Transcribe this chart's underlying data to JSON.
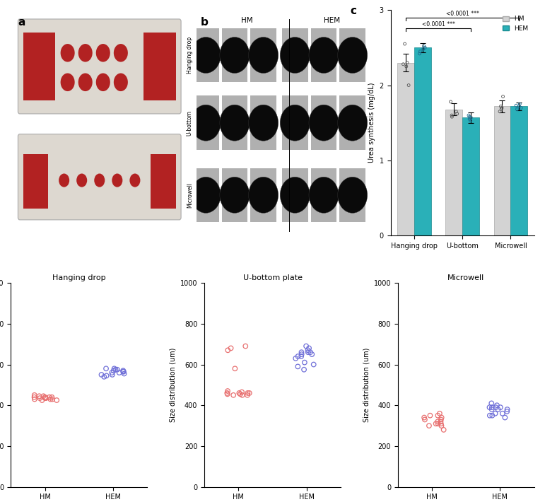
{
  "bar_chart": {
    "groups": [
      "Hanging drop",
      "U-bottom",
      "Microwell"
    ],
    "hm_means": [
      2.3,
      1.68,
      1.72
    ],
    "hem_means": [
      2.5,
      1.57,
      1.72
    ],
    "hm_errors": [
      0.12,
      0.08,
      0.08
    ],
    "hem_errors": [
      0.06,
      0.07,
      0.05
    ],
    "hm_dots": [
      [
        2.55,
        2.0,
        2.3,
        2.25,
        2.28
      ],
      [
        1.78,
        1.62,
        1.65,
        1.58,
        1.6
      ],
      [
        1.85,
        1.65,
        1.72,
        1.68,
        1.7
      ]
    ],
    "hem_dots": [
      [
        2.45,
        2.42,
        2.5,
        2.48,
        2.52
      ],
      [
        1.6,
        1.55,
        1.57,
        1.53,
        1.58
      ],
      [
        1.7,
        1.68,
        1.72,
        1.75,
        1.73
      ]
    ],
    "hm_color": "#d3d3d3",
    "hem_color": "#2ab0b8",
    "ylabel": "Urea synthesis (mg/dL)",
    "ylim": [
      0,
      3
    ],
    "yticks": [
      0,
      1,
      2,
      3
    ],
    "legend_labels": [
      "HM",
      "HEM"
    ],
    "sig_label1": "<0.0001 ***",
    "sig_label2": "<0.0001 ***"
  },
  "scatter_plots": {
    "titles": [
      "Hanging drop",
      "U-bottom plate",
      "Microwell"
    ],
    "ylabel": "Size distribution (um)",
    "ylim": [
      0,
      1000
    ],
    "yticks": [
      0,
      200,
      400,
      600,
      800,
      1000
    ],
    "xtick_labels": [
      "HM",
      "HEM"
    ],
    "hm_color": "#e87070",
    "hem_color": "#7070d8",
    "hanging_drop": {
      "hm": [
        430,
        440,
        445,
        430,
        425,
        435,
        440,
        450,
        445,
        435,
        440,
        430,
        425,
        440,
        435
      ],
      "hem": [
        570,
        580,
        560,
        565,
        550,
        575,
        555,
        545,
        580,
        565,
        540,
        570,
        560,
        575,
        550
      ]
    },
    "u_bottom": {
      "hm": [
        450,
        460,
        680,
        670,
        690,
        450,
        465,
        455,
        460,
        580,
        460,
        470,
        450,
        460,
        455
      ],
      "hem": [
        660,
        670,
        680,
        690,
        640,
        650,
        660,
        575,
        600,
        610,
        590,
        640,
        630,
        650,
        660
      ]
    },
    "microwell": {
      "hm": [
        350,
        360,
        320,
        310,
        300,
        280,
        340,
        330,
        350,
        310,
        300,
        320,
        310,
        330,
        340
      ],
      "hem": [
        390,
        400,
        380,
        410,
        390,
        350,
        360,
        370,
        380,
        390,
        340,
        350,
        360,
        380,
        390
      ]
    }
  }
}
